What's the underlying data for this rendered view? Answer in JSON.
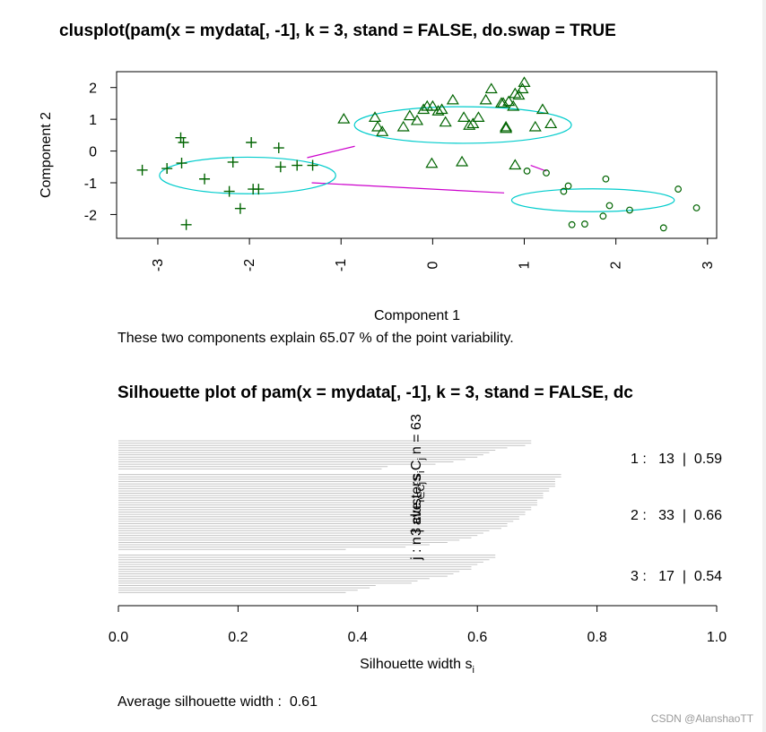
{
  "chart_data": [
    {
      "type": "scatter",
      "title": "clusplot(pam(x = mydata[, -1], k = 3, stand = FALSE, do.swap = TRUE",
      "xlabel": "Component 1",
      "ylabel": "Component 2",
      "xlim": [
        -3.45,
        3.1
      ],
      "ylim": [
        -2.75,
        2.5
      ],
      "xticks": [
        "-3",
        "-2",
        "-1",
        "0",
        "1",
        "2",
        "3"
      ],
      "yticks": [
        "2",
        "1",
        "0",
        "-1",
        "-2"
      ],
      "subtitle": "These two components explain 65.07 % of the point variability.",
      "grid": false,
      "point_color": "#006400",
      "ellipse_color": "#00cccc",
      "line_color": "#cc00cc",
      "ellipses": [
        {
          "cx": -2.02,
          "cy": -0.77,
          "rx": 1.3,
          "ry": 1.6
        },
        {
          "cx": 0.33,
          "cy": 0.82,
          "rx": 1.6,
          "ry": 1.6
        },
        {
          "cx": 1.75,
          "cy": -1.55,
          "rx": 1.2,
          "ry": 1.0
        }
      ],
      "connecting_lines": [
        {
          "x": [
            -1.37,
            -0.85
          ],
          "y": [
            -0.21,
            0.15
          ]
        },
        {
          "x": [
            -1.32,
            0.78
          ],
          "y": [
            -1.0,
            -1.32
          ]
        },
        {
          "x": [
            1.07,
            1.24
          ],
          "y": [
            -0.45,
            -0.63
          ]
        }
      ],
      "series": [
        {
          "marker": "plus",
          "x": [
            -3.17,
            -2.9,
            -2.75,
            -2.72,
            -2.74,
            -2.69,
            -2.49,
            -2.18,
            -2.22,
            -2.1,
            -1.98,
            -1.96,
            -1.9,
            -1.68,
            -1.66,
            -1.48,
            -1.31
          ],
          "y": [
            -0.6,
            -0.55,
            0.42,
            0.27,
            -0.38,
            -2.32,
            -0.88,
            -0.35,
            -1.27,
            -1.81,
            0.27,
            -1.2,
            -1.2,
            0.1,
            -0.5,
            -0.45,
            -0.45
          ]
        },
        {
          "marker": "triangle",
          "x": [
            -0.97,
            -0.63,
            -0.6,
            -0.55,
            -0.32,
            -0.25,
            -0.17,
            -0.1,
            -0.06,
            0.0,
            0.06,
            0.1,
            0.14,
            0.22,
            0.34,
            0.4,
            0.44,
            0.5,
            0.58,
            0.64,
            0.75,
            0.77,
            0.8,
            0.8,
            0.83,
            0.88,
            0.9,
            0.94,
            0.98,
            1.0,
            1.12,
            1.2,
            1.29,
            -0.01,
            0.32,
            0.9
          ],
          "y": [
            1.0,
            1.05,
            0.75,
            0.6,
            0.75,
            1.1,
            0.95,
            1.3,
            1.4,
            1.4,
            1.25,
            1.3,
            0.9,
            1.6,
            1.05,
            0.8,
            0.85,
            1.05,
            1.6,
            1.95,
            1.5,
            1.5,
            0.75,
            0.7,
            1.55,
            1.4,
            1.8,
            1.75,
            1.95,
            2.15,
            0.75,
            1.3,
            0.85,
            -0.4,
            -0.35,
            -0.45
          ]
        },
        {
          "marker": "circle",
          "x": [
            1.03,
            1.24,
            1.43,
            1.48,
            1.52,
            1.66,
            1.86,
            1.89,
            1.93,
            2.15,
            2.52,
            2.68,
            2.88
          ],
          "y": [
            -0.63,
            -0.69,
            -1.27,
            -1.1,
            -2.32,
            -2.3,
            -2.05,
            -0.88,
            -1.72,
            -1.86,
            -2.42,
            -1.2,
            -1.79
          ]
        }
      ]
    },
    {
      "type": "bar",
      "title": "Silhouette plot of pam(x = mydata[, -1], k = 3, stand = FALSE, dc",
      "xlabel": "Silhouette width s",
      "xlabel_sub": "i",
      "xlim": [
        0,
        1
      ],
      "xticks": [
        "0.0",
        "0.2",
        "0.4",
        "0.6",
        "0.8",
        "1.0"
      ],
      "orientation": "horizontal",
      "bar_color": "#c4c4c4",
      "header_label": "j : n | ave",
      "header_sub": "i∈Cj",
      "header_label2": "s",
      "header_sub2": "i",
      "header_label3": "3 clusters C",
      "header_sub3": "j",
      "header_label4": "n = 63",
      "cluster_labels": [
        "1 :   13  |  0.59",
        "2 :   33  |  0.66",
        "3 :   17  |  0.54"
      ],
      "clusters": [
        {
          "id": 1,
          "n": 13,
          "avg": 0.59,
          "values": [
            0.69,
            0.69,
            0.68,
            0.65,
            0.63,
            0.62,
            0.61,
            0.6,
            0.58,
            0.56,
            0.53,
            0.45,
            0.44
          ]
        },
        {
          "id": 2,
          "n": 33,
          "avg": 0.66,
          "values": [
            0.74,
            0.74,
            0.73,
            0.73,
            0.73,
            0.73,
            0.72,
            0.72,
            0.71,
            0.71,
            0.71,
            0.7,
            0.7,
            0.7,
            0.69,
            0.69,
            0.68,
            0.68,
            0.67,
            0.67,
            0.66,
            0.65,
            0.65,
            0.64,
            0.62,
            0.61,
            0.6,
            0.59,
            0.57,
            0.55,
            0.52,
            0.48,
            0.38
          ]
        },
        {
          "id": 3,
          "n": 17,
          "avg": 0.54,
          "values": [
            0.63,
            0.63,
            0.62,
            0.61,
            0.6,
            0.59,
            0.59,
            0.57,
            0.56,
            0.55,
            0.52,
            0.5,
            0.49,
            0.43,
            0.42,
            0.4,
            0.38
          ]
        }
      ],
      "footer": "Average silhouette width :  0.61"
    }
  ],
  "watermark": "CSDN @AlanshaoTT"
}
